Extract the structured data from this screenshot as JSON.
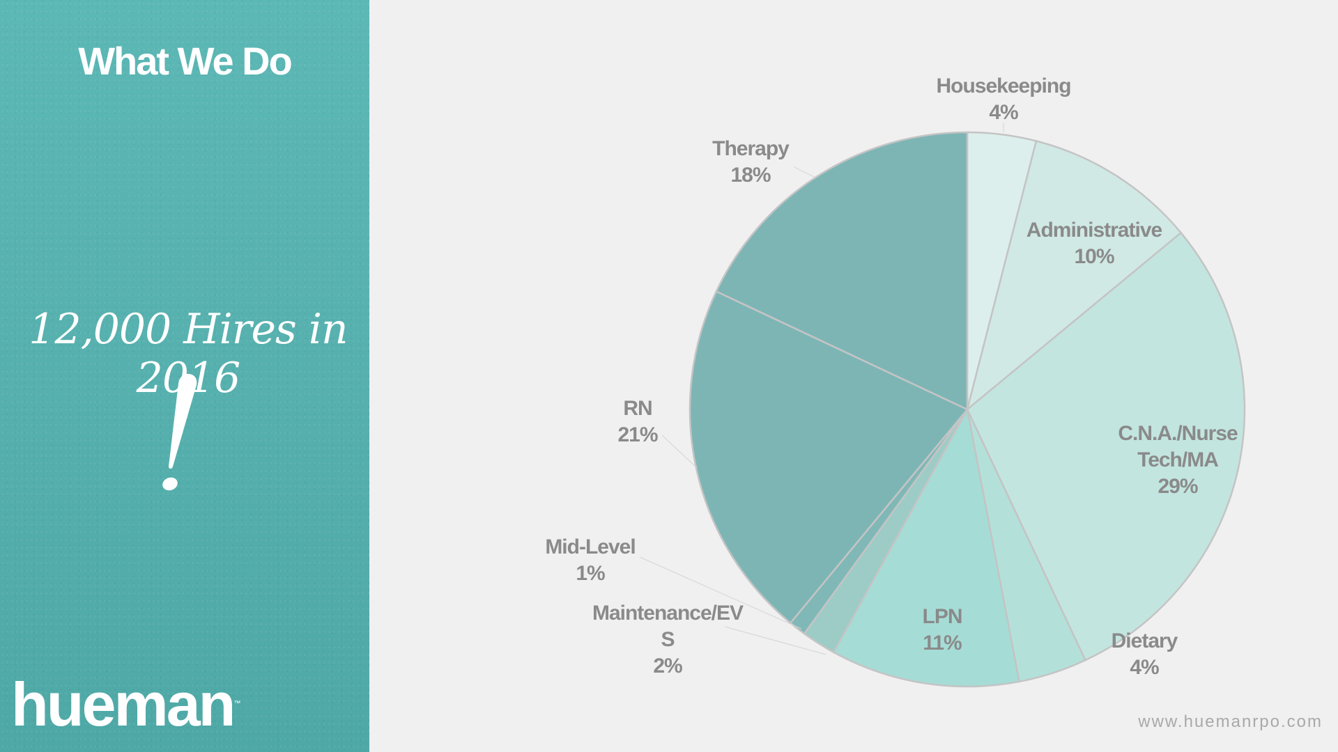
{
  "panel": {
    "title": "What We Do",
    "hires": "12,000 Hires in 2016",
    "exclaim": "!",
    "logo": "hueman",
    "logo_tm": "™"
  },
  "website": "www.huemanrpo.com",
  "chart_data": {
    "type": "pie",
    "title": "",
    "start": "top, clockwise",
    "slices": [
      {
        "label": "Housekeeping",
        "value_label": "4%",
        "value": 4,
        "color": "#dcefec"
      },
      {
        "label": "Administrative",
        "value_label": "10%",
        "value": 10,
        "color": "#d0e9e5"
      },
      {
        "label": "C.N.A./Nurse Tech/MA",
        "value_label": "29%",
        "value": 29,
        "color": "#c3e5df"
      },
      {
        "label": "Dietary",
        "value_label": "4%",
        "value": 4,
        "color": "#b4e0da"
      },
      {
        "label": "LPN",
        "value_label": "11%",
        "value": 11,
        "color": "#a6dcd6"
      },
      {
        "label": "Maintenance/EVS",
        "value_label": "2%",
        "value": 2,
        "color": "#9dccc7"
      },
      {
        "label": "Mid-Level",
        "value_label": "1%",
        "value": 1,
        "color": "#7fb8b6"
      },
      {
        "label": "RN",
        "value_label": "21%",
        "value": 21,
        "color": "#7db5b5"
      },
      {
        "label": "Therapy",
        "value_label": "18%",
        "value": 18,
        "color": "#7db5b5"
      }
    ]
  }
}
